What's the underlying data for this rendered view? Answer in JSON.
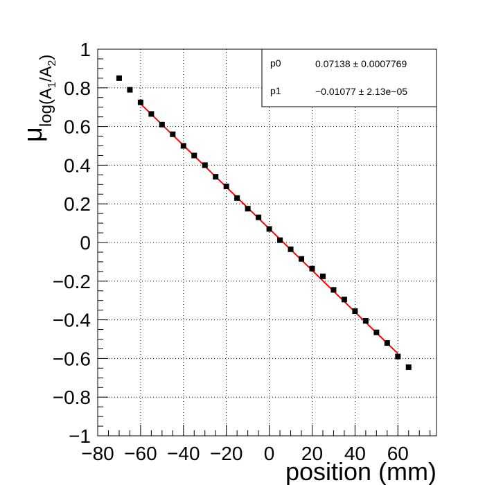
{
  "chart_data": {
    "type": "scatter",
    "xlabel": "position (mm)",
    "ylabel_main": "μ",
    "ylabel_sub": "log(A",
    "ylabel_sub1": "1",
    "ylabel_mid": "/A",
    "ylabel_sub2": "2",
    "ylabel_end": ")",
    "xlim": [
      -80,
      78
    ],
    "ylim": [
      -1,
      1
    ],
    "xticks": [
      -80,
      -60,
      -40,
      -20,
      0,
      20,
      40,
      60
    ],
    "xtick_labels": [
      "−80",
      "−60",
      "−40",
      "−20",
      "0",
      "20",
      "40",
      "60"
    ],
    "yticks": [
      -1,
      -0.8,
      -0.6,
      -0.4,
      -0.2,
      0,
      0.2,
      0.4,
      0.6,
      0.8,
      1
    ],
    "ytick_labels": [
      "−1",
      "−0.8",
      "−0.6",
      "−0.4",
      "−0.2",
      "0",
      "0.2",
      "0.4",
      "0.6",
      "0.8",
      "1"
    ],
    "grid": true,
    "points": {
      "x": [
        -70,
        -65,
        -60,
        -55,
        -50,
        -45,
        -40,
        -35,
        -30,
        -25,
        -20,
        -15,
        -10,
        -5,
        0,
        5,
        10,
        15,
        20,
        25,
        30,
        35,
        40,
        45,
        50,
        55,
        60,
        65
      ],
      "y": [
        0.85,
        0.79,
        0.725,
        0.665,
        0.61,
        0.56,
        0.5,
        0.45,
        0.4,
        0.34,
        0.29,
        0.23,
        0.175,
        0.13,
        0.07,
        0.012,
        -0.035,
        -0.085,
        -0.135,
        -0.175,
        -0.245,
        -0.295,
        -0.355,
        -0.405,
        -0.465,
        -0.52,
        -0.59,
        -0.645
      ]
    },
    "fit": {
      "p0": 0.07138,
      "p1": -0.01077,
      "x_range": [
        -60,
        60
      ],
      "color": "#ff0000"
    },
    "stats_box": [
      {
        "name": "p0",
        "value": "0.07138 ± 0.0007769"
      },
      {
        "name": "p1",
        "value": "−0.01077 ± 2.13e−05"
      }
    ]
  }
}
